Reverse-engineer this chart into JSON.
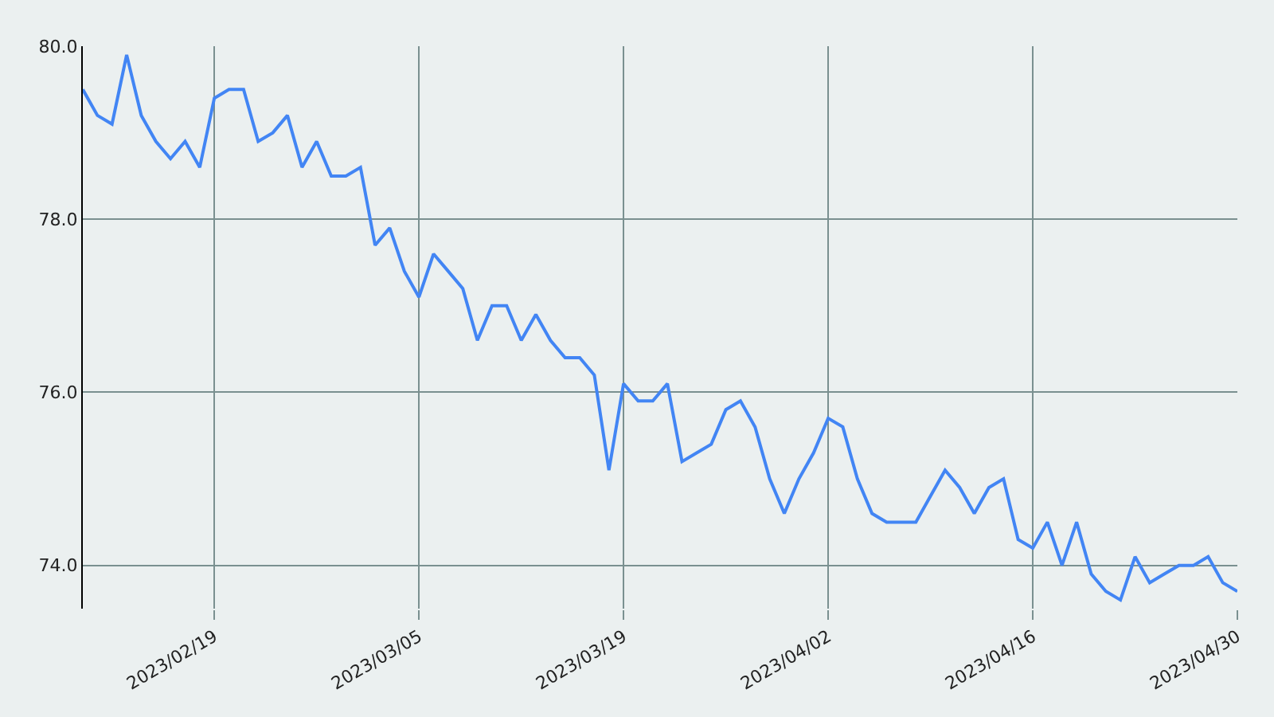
{
  "chart_data": {
    "type": "line",
    "x": [
      "2023-02-10",
      "2023-02-11",
      "2023-02-12",
      "2023-02-13",
      "2023-02-14",
      "2023-02-15",
      "2023-02-16",
      "2023-02-17",
      "2023-02-18",
      "2023-02-19",
      "2023-02-20",
      "2023-02-21",
      "2023-02-22",
      "2023-02-23",
      "2023-02-24",
      "2023-02-25",
      "2023-02-26",
      "2023-02-27",
      "2023-02-28",
      "2023-03-01",
      "2023-03-02",
      "2023-03-03",
      "2023-03-04",
      "2023-03-05",
      "2023-03-06",
      "2023-03-07",
      "2023-03-08",
      "2023-03-09",
      "2023-03-10",
      "2023-03-11",
      "2023-03-12",
      "2023-03-13",
      "2023-03-14",
      "2023-03-15",
      "2023-03-16",
      "2023-03-17",
      "2023-03-18",
      "2023-03-19",
      "2023-03-20",
      "2023-03-21",
      "2023-03-22",
      "2023-03-23",
      "2023-03-24",
      "2023-03-25",
      "2023-03-26",
      "2023-03-27",
      "2023-03-28",
      "2023-03-29",
      "2023-03-30",
      "2023-03-31",
      "2023-04-01",
      "2023-04-02",
      "2023-04-03",
      "2023-04-04",
      "2023-04-05",
      "2023-04-06",
      "2023-04-07",
      "2023-04-08",
      "2023-04-09",
      "2023-04-10",
      "2023-04-11",
      "2023-04-12",
      "2023-04-13",
      "2023-04-14",
      "2023-04-15",
      "2023-04-16",
      "2023-04-17",
      "2023-04-18",
      "2023-04-19",
      "2023-04-20",
      "2023-04-21",
      "2023-04-22",
      "2023-04-23",
      "2023-04-24",
      "2023-04-25",
      "2023-04-26",
      "2023-04-27",
      "2023-04-28",
      "2023-04-29",
      "2023-04-30"
    ],
    "series": [
      {
        "color": "#4285f4",
        "values": [
          79.5,
          79.2,
          79.1,
          79.9,
          79.2,
          78.9,
          78.7,
          78.9,
          78.6,
          79.4,
          79.5,
          79.5,
          78.9,
          79.0,
          79.2,
          78.6,
          78.9,
          78.5,
          78.5,
          78.6,
          77.7,
          77.9,
          77.4,
          77.1,
          77.6,
          77.4,
          77.2,
          76.6,
          77.0,
          77.0,
          76.6,
          76.9,
          76.6,
          76.4,
          76.4,
          76.2,
          75.1,
          76.1,
          75.9,
          75.9,
          76.1,
          75.2,
          75.3,
          75.4,
          75.8,
          75.9,
          75.6,
          75.0,
          74.6,
          75.0,
          75.3,
          75.7,
          75.6,
          75.0,
          74.6,
          74.5,
          74.5,
          74.5,
          74.8,
          75.1,
          74.9,
          74.6,
          74.9,
          75.0,
          74.3,
          74.2,
          74.5,
          74.0,
          74.5,
          73.9,
          73.7,
          73.6,
          74.1,
          73.8,
          73.9,
          74.0,
          74.0,
          74.1,
          73.8,
          73.7
        ]
      }
    ],
    "xlim": [
      "2023-02-10",
      "2023-04-30"
    ],
    "xticks": [
      {
        "value": "2023-02-19",
        "label": "2023/02/19"
      },
      {
        "value": "2023-03-05",
        "label": "2023/03/05"
      },
      {
        "value": "2023-03-19",
        "label": "2023/03/19"
      },
      {
        "value": "2023-04-02",
        "label": "2023/04/02"
      },
      {
        "value": "2023-04-16",
        "label": "2023/04/16"
      },
      {
        "value": "2023-04-30",
        "label": "2023/04/30"
      }
    ],
    "ylim": [
      73.5,
      80
    ],
    "yticks": [
      {
        "value": 74,
        "label": "74.0"
      },
      {
        "value": 76,
        "label": "76.0"
      },
      {
        "value": 78,
        "label": "78.0"
      },
      {
        "value": 80,
        "label": "80.0"
      }
    ],
    "grid": true,
    "marker": "none",
    "line_style": "solid"
  }
}
